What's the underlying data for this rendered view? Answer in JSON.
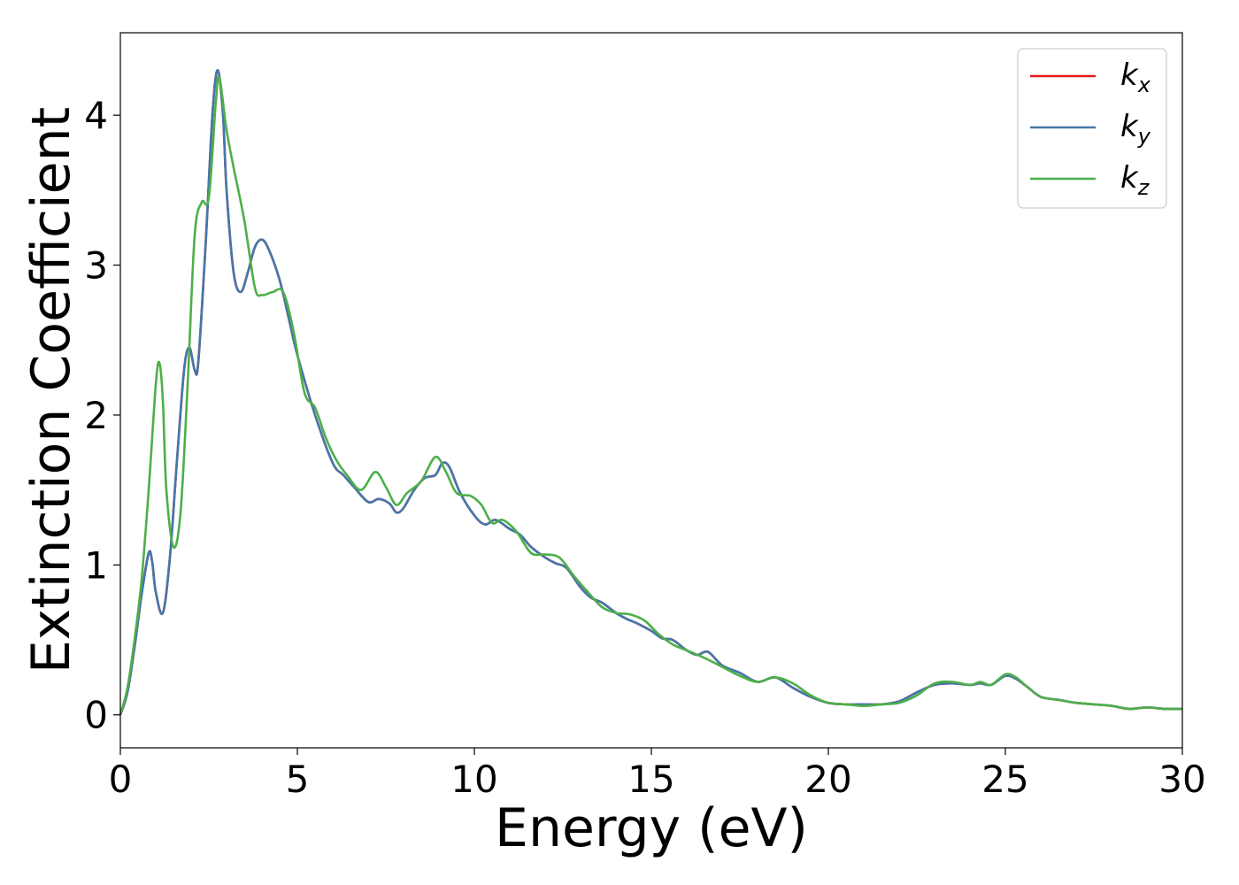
{
  "chart_data": {
    "type": "line",
    "xlabel": "Energy (eV)",
    "ylabel": "Extinction Coefficient",
    "xlim": [
      0,
      30
    ],
    "ylim": [
      -0.22,
      4.55
    ],
    "xticks": [
      0,
      5,
      10,
      15,
      20,
      25,
      30
    ],
    "xtick_labels": [
      "0",
      "5",
      "10",
      "15",
      "20",
      "25",
      "30"
    ],
    "yticks": [
      0,
      1,
      2,
      3,
      4
    ],
    "ytick_labels": [
      "0",
      "1",
      "2",
      "3",
      "4"
    ],
    "grid": false,
    "legend_position": "top-right",
    "series": [
      {
        "name": "k_x",
        "legend_main": "k",
        "legend_sub": "x",
        "color": "#e41a1c",
        "x": [
          0,
          0.2,
          0.4,
          0.6,
          0.8,
          0.9,
          1.0,
          1.2,
          1.4,
          1.6,
          1.8,
          1.95,
          2.1,
          2.2,
          2.4,
          2.6,
          2.75,
          2.9,
          3.0,
          3.2,
          3.4,
          3.6,
          3.8,
          4.0,
          4.2,
          4.5,
          4.8,
          5.0,
          5.5,
          6.0,
          6.3,
          6.6,
          7.0,
          7.3,
          7.6,
          7.8,
          8.0,
          8.3,
          8.6,
          8.9,
          9.1,
          9.3,
          9.6,
          10.0,
          10.3,
          10.6,
          11.0,
          11.3,
          11.6,
          12.0,
          12.3,
          12.6,
          13.0,
          13.3,
          13.6,
          14.0,
          14.3,
          14.6,
          15.0,
          15.3,
          15.6,
          16.0,
          16.3,
          16.6,
          17.0,
          17.5,
          18.0,
          18.5,
          19.0,
          19.5,
          20.0,
          20.5,
          21.0,
          21.5,
          22.0,
          22.5,
          23.0,
          23.5,
          24.0,
          24.3,
          24.6,
          25.0,
          25.3,
          25.6,
          26.0,
          26.5,
          27.0,
          27.5,
          28.0,
          28.5,
          29.0,
          29.5,
          30.0
        ],
        "y": [
          0,
          0.15,
          0.45,
          0.8,
          1.08,
          1.02,
          0.82,
          0.68,
          1.05,
          1.7,
          2.3,
          2.45,
          2.3,
          2.35,
          3.1,
          4.0,
          4.3,
          4.0,
          3.5,
          2.95,
          2.82,
          2.95,
          3.12,
          3.17,
          3.1,
          2.9,
          2.6,
          2.4,
          2.0,
          1.68,
          1.6,
          1.52,
          1.42,
          1.44,
          1.41,
          1.35,
          1.38,
          1.5,
          1.58,
          1.6,
          1.68,
          1.65,
          1.48,
          1.33,
          1.27,
          1.3,
          1.24,
          1.2,
          1.12,
          1.05,
          1.01,
          0.98,
          0.85,
          0.78,
          0.75,
          0.68,
          0.64,
          0.61,
          0.56,
          0.51,
          0.5,
          0.43,
          0.4,
          0.42,
          0.33,
          0.28,
          0.22,
          0.25,
          0.18,
          0.12,
          0.08,
          0.07,
          0.07,
          0.07,
          0.09,
          0.15,
          0.2,
          0.21,
          0.2,
          0.21,
          0.2,
          0.26,
          0.24,
          0.19,
          0.12,
          0.1,
          0.08,
          0.07,
          0.06,
          0.04,
          0.05,
          0.04,
          0.04
        ]
      },
      {
        "name": "k_y",
        "legend_main": "k",
        "legend_sub": "y",
        "color": "#4477aa",
        "x": [
          0,
          0.2,
          0.4,
          0.6,
          0.8,
          0.9,
          1.0,
          1.2,
          1.4,
          1.6,
          1.8,
          1.95,
          2.1,
          2.2,
          2.4,
          2.6,
          2.75,
          2.9,
          3.0,
          3.2,
          3.4,
          3.6,
          3.8,
          4.0,
          4.2,
          4.5,
          4.8,
          5.0,
          5.5,
          6.0,
          6.3,
          6.6,
          7.0,
          7.3,
          7.6,
          7.8,
          8.0,
          8.3,
          8.6,
          8.9,
          9.1,
          9.3,
          9.6,
          10.0,
          10.3,
          10.6,
          11.0,
          11.3,
          11.6,
          12.0,
          12.3,
          12.6,
          13.0,
          13.3,
          13.6,
          14.0,
          14.3,
          14.6,
          15.0,
          15.3,
          15.6,
          16.0,
          16.3,
          16.6,
          17.0,
          17.5,
          18.0,
          18.5,
          19.0,
          19.5,
          20.0,
          20.5,
          21.0,
          21.5,
          22.0,
          22.5,
          23.0,
          23.5,
          24.0,
          24.3,
          24.6,
          25.0,
          25.3,
          25.6,
          26.0,
          26.5,
          27.0,
          27.5,
          28.0,
          28.5,
          29.0,
          29.5,
          30.0
        ],
        "y": [
          0,
          0.15,
          0.45,
          0.8,
          1.08,
          1.02,
          0.82,
          0.68,
          1.05,
          1.7,
          2.3,
          2.45,
          2.3,
          2.35,
          3.1,
          4.0,
          4.3,
          4.0,
          3.5,
          2.95,
          2.82,
          2.95,
          3.12,
          3.17,
          3.1,
          2.9,
          2.6,
          2.4,
          2.0,
          1.68,
          1.6,
          1.52,
          1.42,
          1.44,
          1.41,
          1.35,
          1.38,
          1.5,
          1.58,
          1.6,
          1.68,
          1.65,
          1.48,
          1.33,
          1.27,
          1.3,
          1.24,
          1.2,
          1.12,
          1.05,
          1.01,
          0.98,
          0.85,
          0.78,
          0.75,
          0.68,
          0.64,
          0.61,
          0.56,
          0.51,
          0.5,
          0.43,
          0.4,
          0.42,
          0.33,
          0.28,
          0.22,
          0.25,
          0.18,
          0.12,
          0.08,
          0.07,
          0.07,
          0.07,
          0.09,
          0.15,
          0.2,
          0.21,
          0.2,
          0.21,
          0.2,
          0.26,
          0.24,
          0.19,
          0.12,
          0.1,
          0.08,
          0.07,
          0.06,
          0.04,
          0.05,
          0.04,
          0.04
        ]
      },
      {
        "name": "k_z",
        "legend_main": "k",
        "legend_sub": "z",
        "color": "#4daf4a",
        "x": [
          0,
          0.2,
          0.4,
          0.6,
          0.8,
          1.0,
          1.1,
          1.2,
          1.3,
          1.5,
          1.7,
          1.9,
          2.1,
          2.3,
          2.5,
          2.7,
          2.8,
          3.0,
          3.2,
          3.5,
          3.8,
          4.0,
          4.3,
          4.6,
          4.9,
          5.2,
          5.5,
          5.8,
          6.1,
          6.4,
          6.8,
          7.2,
          7.5,
          7.8,
          8.1,
          8.5,
          8.9,
          9.2,
          9.5,
          9.9,
          10.2,
          10.5,
          10.8,
          11.2,
          11.6,
          12.0,
          12.4,
          12.8,
          13.2,
          13.6,
          14.0,
          14.4,
          14.8,
          15.2,
          15.6,
          16.0,
          16.5,
          17.0,
          17.5,
          18.0,
          18.5,
          19.0,
          19.5,
          20.0,
          20.5,
          21.0,
          21.5,
          22.0,
          22.5,
          23.0,
          23.5,
          24.0,
          24.3,
          24.6,
          25.0,
          25.3,
          25.6,
          26.0,
          26.5,
          27.0,
          27.5,
          28.0,
          28.5,
          29.0,
          29.5,
          30.0
        ],
        "y": [
          0,
          0.18,
          0.5,
          0.9,
          1.5,
          2.2,
          2.35,
          2.1,
          1.5,
          1.12,
          1.35,
          2.2,
          3.2,
          3.42,
          3.45,
          4.1,
          4.25,
          3.9,
          3.65,
          3.3,
          2.85,
          2.8,
          2.82,
          2.82,
          2.55,
          2.15,
          2.05,
          1.85,
          1.7,
          1.6,
          1.5,
          1.62,
          1.52,
          1.4,
          1.48,
          1.56,
          1.72,
          1.62,
          1.48,
          1.46,
          1.4,
          1.28,
          1.3,
          1.22,
          1.08,
          1.07,
          1.05,
          0.93,
          0.82,
          0.72,
          0.68,
          0.67,
          0.63,
          0.54,
          0.47,
          0.43,
          0.38,
          0.32,
          0.26,
          0.22,
          0.25,
          0.21,
          0.13,
          0.08,
          0.07,
          0.06,
          0.07,
          0.08,
          0.13,
          0.21,
          0.22,
          0.2,
          0.22,
          0.2,
          0.27,
          0.25,
          0.19,
          0.12,
          0.1,
          0.08,
          0.07,
          0.06,
          0.04,
          0.05,
          0.04,
          0.04
        ]
      }
    ]
  }
}
